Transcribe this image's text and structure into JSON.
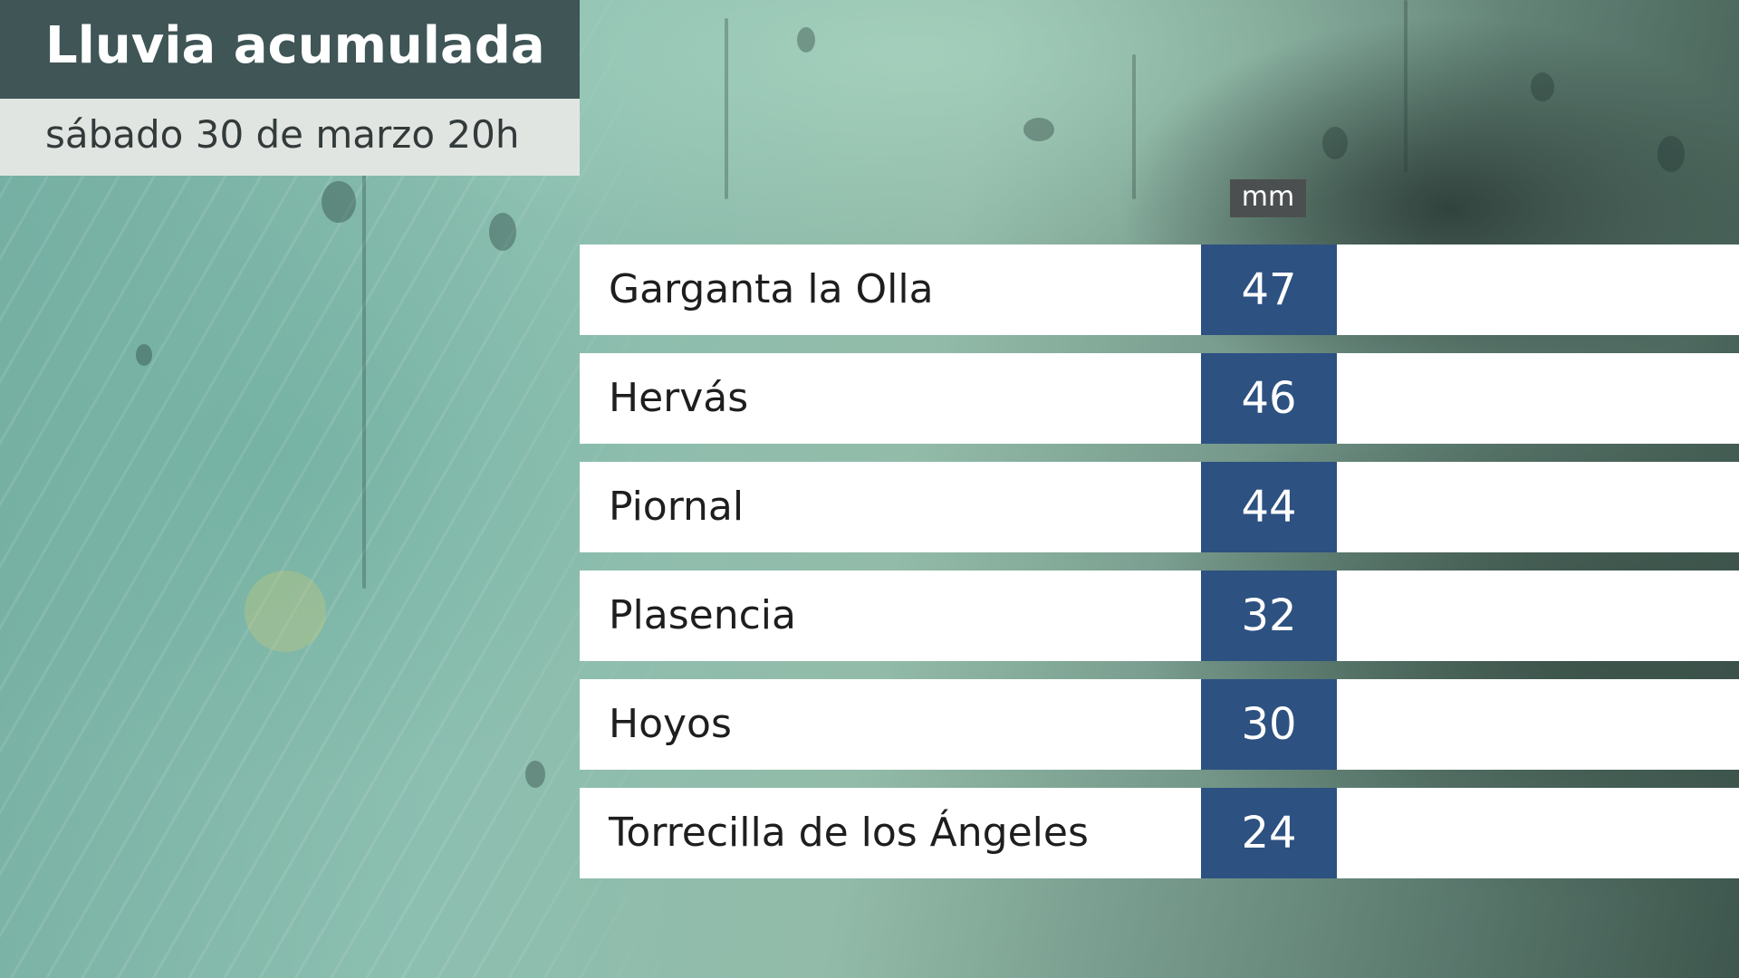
{
  "title": "Lluvia acumulada",
  "subtitle": "sábado 30 de marzo 20h",
  "unit": "mm",
  "rows": [
    {
      "name": "Garganta la Olla",
      "value": "47"
    },
    {
      "name": "Hervás",
      "value": "46"
    },
    {
      "name": "Piornal",
      "value": "44"
    },
    {
      "name": "Plasencia",
      "value": "32"
    },
    {
      "name": "Hoyos",
      "value": "30"
    },
    {
      "name": "Torrecilla de los Ángeles",
      "value": "24"
    }
  ],
  "colors": {
    "title_bg": "#3f5556",
    "subtitle_bg": "#e1e5e2",
    "value_bg": "#2d5181",
    "unit_bg": "#4c4f50",
    "row_bg": "#ffffff"
  }
}
